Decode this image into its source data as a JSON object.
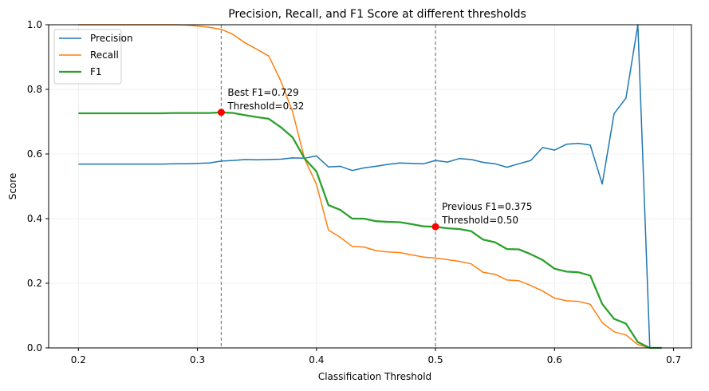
{
  "chart_data": {
    "type": "line",
    "title": "Precision, Recall, and F1 Score at different thresholds",
    "xlabel": "Classification Threshold",
    "ylabel": "Score",
    "xlim": [
      0.175,
      0.715
    ],
    "ylim": [
      0,
      1
    ],
    "grid": true,
    "legend_position": "top-left",
    "xticks": [
      0.2,
      0.3,
      0.4,
      0.5,
      0.6,
      0.7
    ],
    "xtick_labels": [
      "0.2",
      "0.3",
      "0.4",
      "0.5",
      "0.6",
      "0.7"
    ],
    "yticks": [
      0.0,
      0.2,
      0.4,
      0.6,
      0.8,
      1.0
    ],
    "ytick_labels": [
      "0.0",
      "0.2",
      "0.4",
      "0.6",
      "0.8",
      "1.0"
    ],
    "x": [
      0.2,
      0.21,
      0.22,
      0.23,
      0.24,
      0.25,
      0.26,
      0.27,
      0.28,
      0.29,
      0.3,
      0.31,
      0.32,
      0.33,
      0.34,
      0.35,
      0.36,
      0.37,
      0.38,
      0.39,
      0.4,
      0.41,
      0.42,
      0.43,
      0.44,
      0.45,
      0.46,
      0.47,
      0.48,
      0.49,
      0.5,
      0.51,
      0.52,
      0.53,
      0.54,
      0.55,
      0.56,
      0.57,
      0.58,
      0.59,
      0.6,
      0.61,
      0.62,
      0.63,
      0.64,
      0.65,
      0.66,
      0.67,
      0.68,
      0.69
    ],
    "series": [
      {
        "name": "Precision",
        "color": "#1f77b4",
        "width": 1.5,
        "values": [
          0.569,
          0.569,
          0.569,
          0.569,
          0.569,
          0.569,
          0.569,
          0.569,
          0.57,
          0.57,
          0.571,
          0.572,
          0.578,
          0.58,
          0.583,
          0.582,
          0.583,
          0.584,
          0.588,
          0.587,
          0.594,
          0.56,
          0.562,
          0.549,
          0.557,
          0.562,
          0.568,
          0.572,
          0.571,
          0.57,
          0.58,
          0.575,
          0.586,
          0.583,
          0.574,
          0.57,
          0.559,
          0.57,
          0.58,
          0.62,
          0.612,
          0.63,
          0.633,
          0.628,
          0.507,
          0.725,
          0.773,
          1.0,
          0.0,
          0.0
        ]
      },
      {
        "name": "Recall",
        "color": "#ff7f0e",
        "width": 1.5,
        "values": [
          1.0,
          1.0,
          1.0,
          1.0,
          1.0,
          1.0,
          1.0,
          1.0,
          1.0,
          0.999,
          0.996,
          0.992,
          0.986,
          0.97,
          0.944,
          0.924,
          0.903,
          0.826,
          0.73,
          0.585,
          0.506,
          0.365,
          0.342,
          0.314,
          0.312,
          0.301,
          0.297,
          0.295,
          0.288,
          0.281,
          0.278,
          0.273,
          0.268,
          0.26,
          0.234,
          0.228,
          0.21,
          0.208,
          0.193,
          0.176,
          0.154,
          0.146,
          0.144,
          0.135,
          0.078,
          0.05,
          0.04,
          0.01,
          0.0,
          0.0
        ]
      },
      {
        "name": "F1",
        "color": "#2ca02c",
        "width": 2.3,
        "values": [
          0.726,
          0.726,
          0.726,
          0.726,
          0.726,
          0.726,
          0.726,
          0.726,
          0.727,
          0.727,
          0.727,
          0.727,
          0.729,
          0.727,
          0.72,
          0.714,
          0.709,
          0.683,
          0.651,
          0.586,
          0.546,
          0.442,
          0.427,
          0.4,
          0.4,
          0.392,
          0.39,
          0.389,
          0.383,
          0.376,
          0.375,
          0.37,
          0.368,
          0.361,
          0.335,
          0.327,
          0.306,
          0.305,
          0.29,
          0.272,
          0.245,
          0.236,
          0.234,
          0.224,
          0.136,
          0.09,
          0.075,
          0.018,
          0.0,
          0.0
        ]
      }
    ],
    "vlines": [
      0.32,
      0.5
    ],
    "markers": [
      {
        "x": 0.32,
        "y": 0.729,
        "color": "#ff0000"
      },
      {
        "x": 0.5,
        "y": 0.375,
        "color": "#ff0000"
      }
    ],
    "annotations": [
      {
        "x": 0.32,
        "y": 0.729,
        "lines": [
          "Best F1=0.729",
          "Threshold=0.32"
        ]
      },
      {
        "x": 0.5,
        "y": 0.375,
        "lines": [
          "Previous F1=0.375",
          "Threshold=0.50"
        ]
      }
    ]
  }
}
